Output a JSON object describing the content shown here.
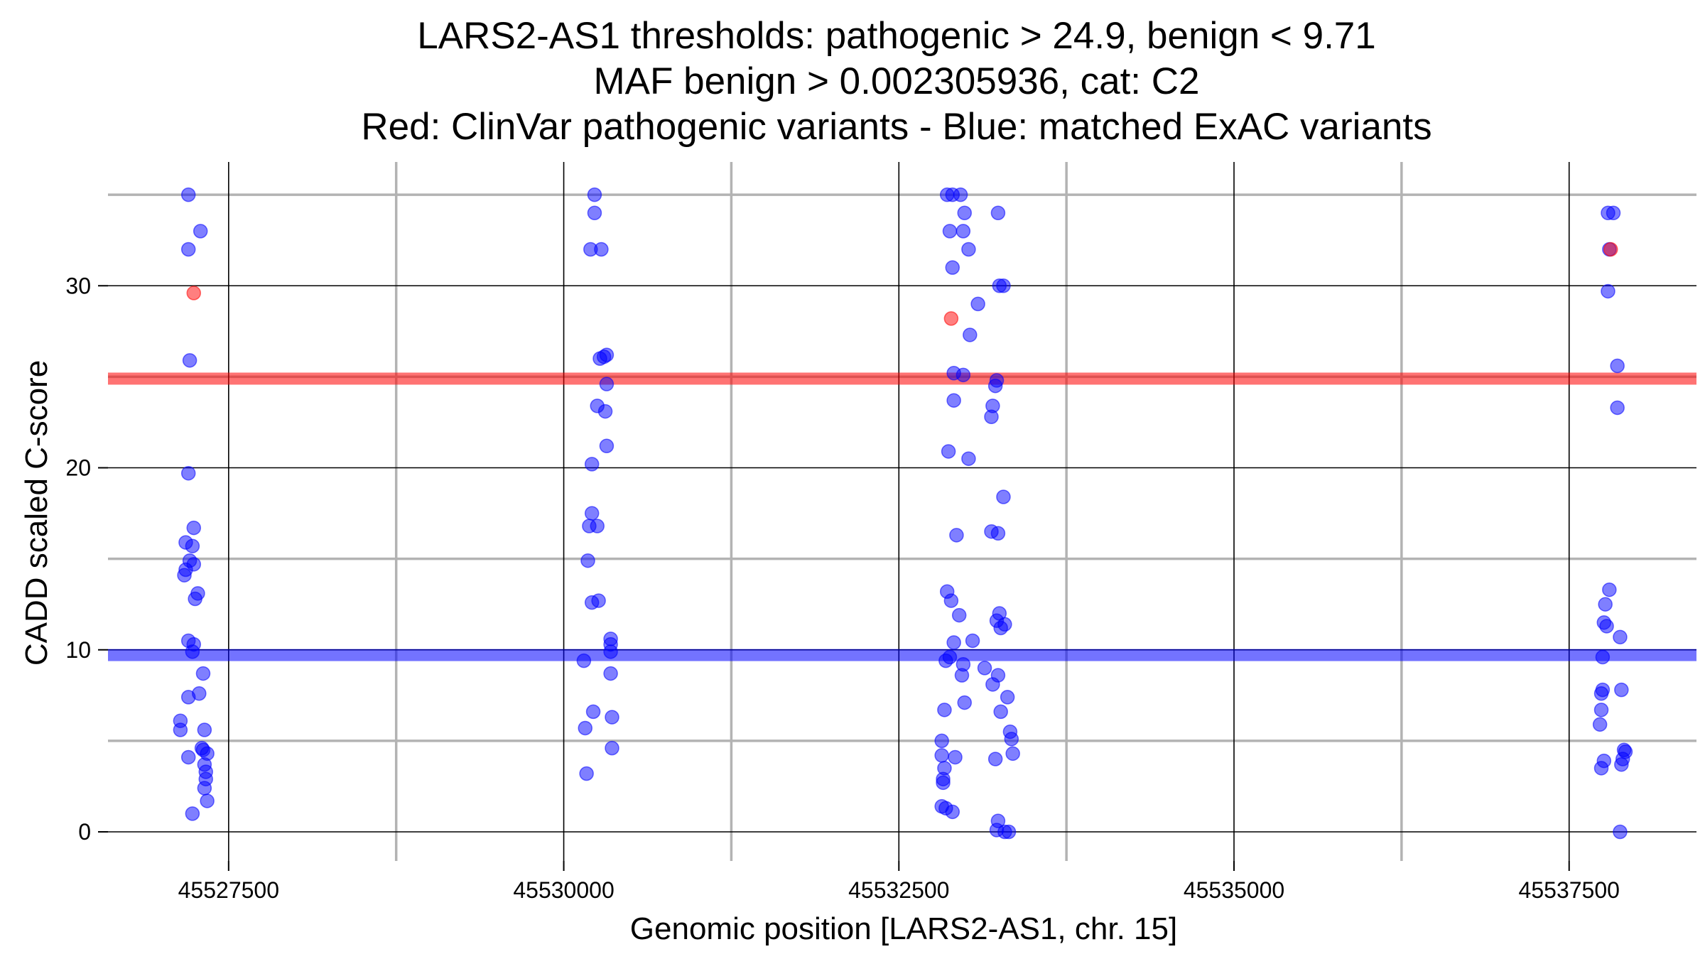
{
  "colors": {
    "pathogenic": "#ff0000",
    "benign": "#0000ff",
    "major_grid": "#000000",
    "minor_grid": "#b3b3b3"
  },
  "chart_data": {
    "type": "scatter",
    "title_lines": [
      "LARS2-AS1 thresholds: pathogenic > 24.9, benign < 9.71",
      "MAF benign > 0.002305936, cat: C2",
      "Red: ClinVar pathogenic variants - Blue: matched ExAC variants"
    ],
    "xlabel": "Genomic position [LARS2-AS1, chr. 15]",
    "ylabel": "CADD scaled C-score",
    "xlim": [
      45526600,
      45538450
    ],
    "ylim": [
      -1.6,
      36.8
    ],
    "x_ticks": [
      45527500,
      45530000,
      45532500,
      45535000,
      45537500
    ],
    "x_tick_labels": [
      "45527500",
      "45530000",
      "45532500",
      "45535000",
      "45537500"
    ],
    "y_ticks": [
      0,
      10,
      20,
      30
    ],
    "y_tick_labels": [
      "0",
      "10",
      "20",
      "30"
    ],
    "x_minor": [
      45528750,
      45531250,
      45533750,
      45536250
    ],
    "y_minor": [
      5,
      15,
      25,
      35
    ],
    "grid": true,
    "thresholds": [
      {
        "name": "pathogenic",
        "value": 24.9,
        "color": "#ff0000"
      },
      {
        "name": "benign",
        "value": 9.71,
        "color": "#0000ff"
      }
    ],
    "series": [
      {
        "color": "#ff0000",
        "points": [
          [
            45527240,
            29.6
          ],
          [
            45532890,
            28.2
          ],
          [
            45537810,
            32.0
          ]
        ]
      },
      {
        "color": "#0000ff",
        "points": [
          [
            45527200,
            35.0
          ],
          [
            45527290,
            33.0
          ],
          [
            45527200,
            32.0
          ],
          [
            45527210,
            25.9
          ],
          [
            45527200,
            19.7
          ],
          [
            45527240,
            16.7
          ],
          [
            45527180,
            15.9
          ],
          [
            45527230,
            15.7
          ],
          [
            45527210,
            14.9
          ],
          [
            45527240,
            14.7
          ],
          [
            45527180,
            14.4
          ],
          [
            45527170,
            14.1
          ],
          [
            45527270,
            13.1
          ],
          [
            45527250,
            12.8
          ],
          [
            45527200,
            10.5
          ],
          [
            45527240,
            10.3
          ],
          [
            45527230,
            9.9
          ],
          [
            45527310,
            8.7
          ],
          [
            45527280,
            7.6
          ],
          [
            45527200,
            7.4
          ],
          [
            45527140,
            6.1
          ],
          [
            45527140,
            5.6
          ],
          [
            45527320,
            5.6
          ],
          [
            45527300,
            4.6
          ],
          [
            45527310,
            4.5
          ],
          [
            45527200,
            4.1
          ],
          [
            45527340,
            4.3
          ],
          [
            45527320,
            3.7
          ],
          [
            45527330,
            3.3
          ],
          [
            45527330,
            2.9
          ],
          [
            45527320,
            2.4
          ],
          [
            45527340,
            1.7
          ],
          [
            45527230,
            1.0
          ],
          [
            45530230,
            35.0
          ],
          [
            45530230,
            34.0
          ],
          [
            45530200,
            32.0
          ],
          [
            45530280,
            32.0
          ],
          [
            45530270,
            26.0
          ],
          [
            45530300,
            26.1
          ],
          [
            45530320,
            26.2
          ],
          [
            45530320,
            24.6
          ],
          [
            45530250,
            23.4
          ],
          [
            45530310,
            23.1
          ],
          [
            45530320,
            21.2
          ],
          [
            45530210,
            20.2
          ],
          [
            45530210,
            17.5
          ],
          [
            45530190,
            16.8
          ],
          [
            45530250,
            16.8
          ],
          [
            45530180,
            14.9
          ],
          [
            45530210,
            12.6
          ],
          [
            45530260,
            12.7
          ],
          [
            45530350,
            10.6
          ],
          [
            45530350,
            10.3
          ],
          [
            45530350,
            9.9
          ],
          [
            45530150,
            9.4
          ],
          [
            45530350,
            8.7
          ],
          [
            45530220,
            6.6
          ],
          [
            45530360,
            6.3
          ],
          [
            45530160,
            5.7
          ],
          [
            45530360,
            4.6
          ],
          [
            45530170,
            3.2
          ],
          [
            45532860,
            35.0
          ],
          [
            45532900,
            35.0
          ],
          [
            45532960,
            35.0
          ],
          [
            45532990,
            34.0
          ],
          [
            45533240,
            34.0
          ],
          [
            45532880,
            33.0
          ],
          [
            45532980,
            33.0
          ],
          [
            45533020,
            32.0
          ],
          [
            45532900,
            31.0
          ],
          [
            45533250,
            30.0
          ],
          [
            45533280,
            30.0
          ],
          [
            45533090,
            29.0
          ],
          [
            45533030,
            27.3
          ],
          [
            45532910,
            25.2
          ],
          [
            45532980,
            25.1
          ],
          [
            45533230,
            24.8
          ],
          [
            45533220,
            24.5
          ],
          [
            45532910,
            23.7
          ],
          [
            45533200,
            23.4
          ],
          [
            45533190,
            22.8
          ],
          [
            45532870,
            20.9
          ],
          [
            45533020,
            20.5
          ],
          [
            45533280,
            18.4
          ],
          [
            45533190,
            16.5
          ],
          [
            45533240,
            16.4
          ],
          [
            45532930,
            16.3
          ],
          [
            45532860,
            13.2
          ],
          [
            45532890,
            12.7
          ],
          [
            45532950,
            11.9
          ],
          [
            45533250,
            12.0
          ],
          [
            45533230,
            11.6
          ],
          [
            45533290,
            11.4
          ],
          [
            45533260,
            11.2
          ],
          [
            45532910,
            10.4
          ],
          [
            45533050,
            10.5
          ],
          [
            45532850,
            9.4
          ],
          [
            45532880,
            9.6
          ],
          [
            45532980,
            9.2
          ],
          [
            45533140,
            9.0
          ],
          [
            45532970,
            8.6
          ],
          [
            45533240,
            8.6
          ],
          [
            45533200,
            8.1
          ],
          [
            45533310,
            7.4
          ],
          [
            45532990,
            7.1
          ],
          [
            45532840,
            6.7
          ],
          [
            45533260,
            6.6
          ],
          [
            45533330,
            5.5
          ],
          [
            45533340,
            5.1
          ],
          [
            45532820,
            5.0
          ],
          [
            45532820,
            4.2
          ],
          [
            45532920,
            4.1
          ],
          [
            45533350,
            4.3
          ],
          [
            45533220,
            4.0
          ],
          [
            45532840,
            3.5
          ],
          [
            45532830,
            2.9
          ],
          [
            45532830,
            2.7
          ],
          [
            45532820,
            1.4
          ],
          [
            45532850,
            1.3
          ],
          [
            45532900,
            1.1
          ],
          [
            45533240,
            0.6
          ],
          [
            45533230,
            0.1
          ],
          [
            45533290,
            0.0
          ],
          [
            45533320,
            0.0
          ],
          [
            45537790,
            34.0
          ],
          [
            45537830,
            34.0
          ],
          [
            45537800,
            32.0
          ],
          [
            45537790,
            29.7
          ],
          [
            45537860,
            25.6
          ],
          [
            45537860,
            23.3
          ],
          [
            45537800,
            13.3
          ],
          [
            45537770,
            12.5
          ],
          [
            45537760,
            11.5
          ],
          [
            45537780,
            11.3
          ],
          [
            45537880,
            10.7
          ],
          [
            45537750,
            9.6
          ],
          [
            45537750,
            7.8
          ],
          [
            45537740,
            7.6
          ],
          [
            45537890,
            7.8
          ],
          [
            45537740,
            6.7
          ],
          [
            45537730,
            5.9
          ],
          [
            45537910,
            4.5
          ],
          [
            45537920,
            4.4
          ],
          [
            45537760,
            3.9
          ],
          [
            45537900,
            4.0
          ],
          [
            45537740,
            3.5
          ],
          [
            45537890,
            3.7
          ],
          [
            45537880,
            0.0
          ]
        ]
      }
    ]
  }
}
